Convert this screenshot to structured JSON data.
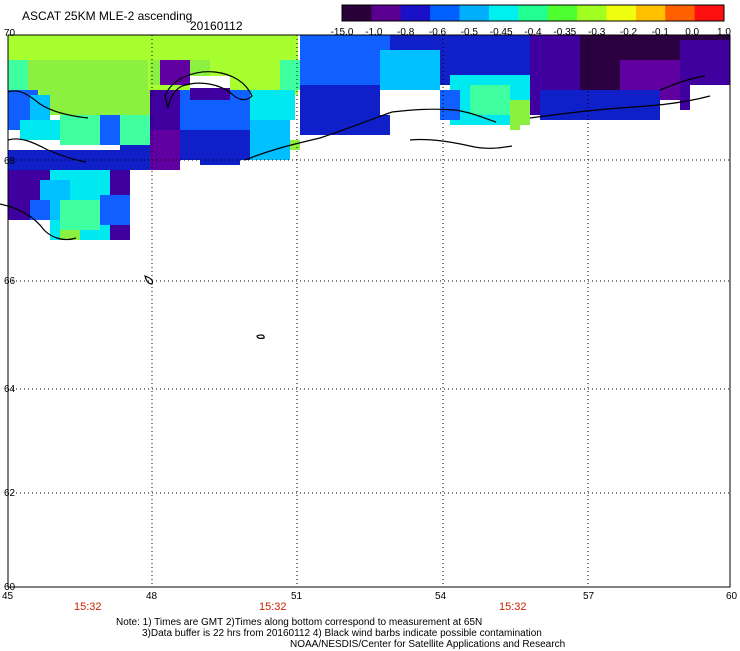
{
  "header": {
    "title": "ASCAT 25KM MLE-2 ascending",
    "date": "20160112"
  },
  "colorbar": {
    "labels": [
      "-15.0",
      "-1.0",
      "-0.8",
      "-0.6",
      "-0.5",
      "-0.45",
      "-0.4",
      "-0.35",
      "-0.3",
      "-0.2",
      "-0.1",
      "0.0",
      "1.0"
    ],
    "colors": [
      "#2a0038",
      "#5a0090",
      "#1a10c8",
      "#0060ff",
      "#00b0ff",
      "#00f0f0",
      "#20ff90",
      "#50ff30",
      "#a0ff20",
      "#f0ff10",
      "#ffc000",
      "#ff6000",
      "#ff1010"
    ]
  },
  "axes": {
    "lat_labels": [
      "70",
      "68",
      "66",
      "64",
      "62",
      "60"
    ],
    "lon_labels": [
      "45",
      "48",
      "51",
      "54",
      "57",
      "60"
    ]
  },
  "times": [
    "15:32",
    "15:32",
    "15:32"
  ],
  "footer": {
    "line1": "Note: 1) Times are GMT 2)Times along bottom correspond to measurement at 65N",
    "line2": "3)Data buffer is 22 hrs from 20160112 4) Black wind barbs indicate possible contamination",
    "line3": "NOAA/NESDIS/Center for Satellite Applications and Research"
  },
  "colors": {
    "time_label": "#cc2200",
    "grid": "#000000"
  }
}
